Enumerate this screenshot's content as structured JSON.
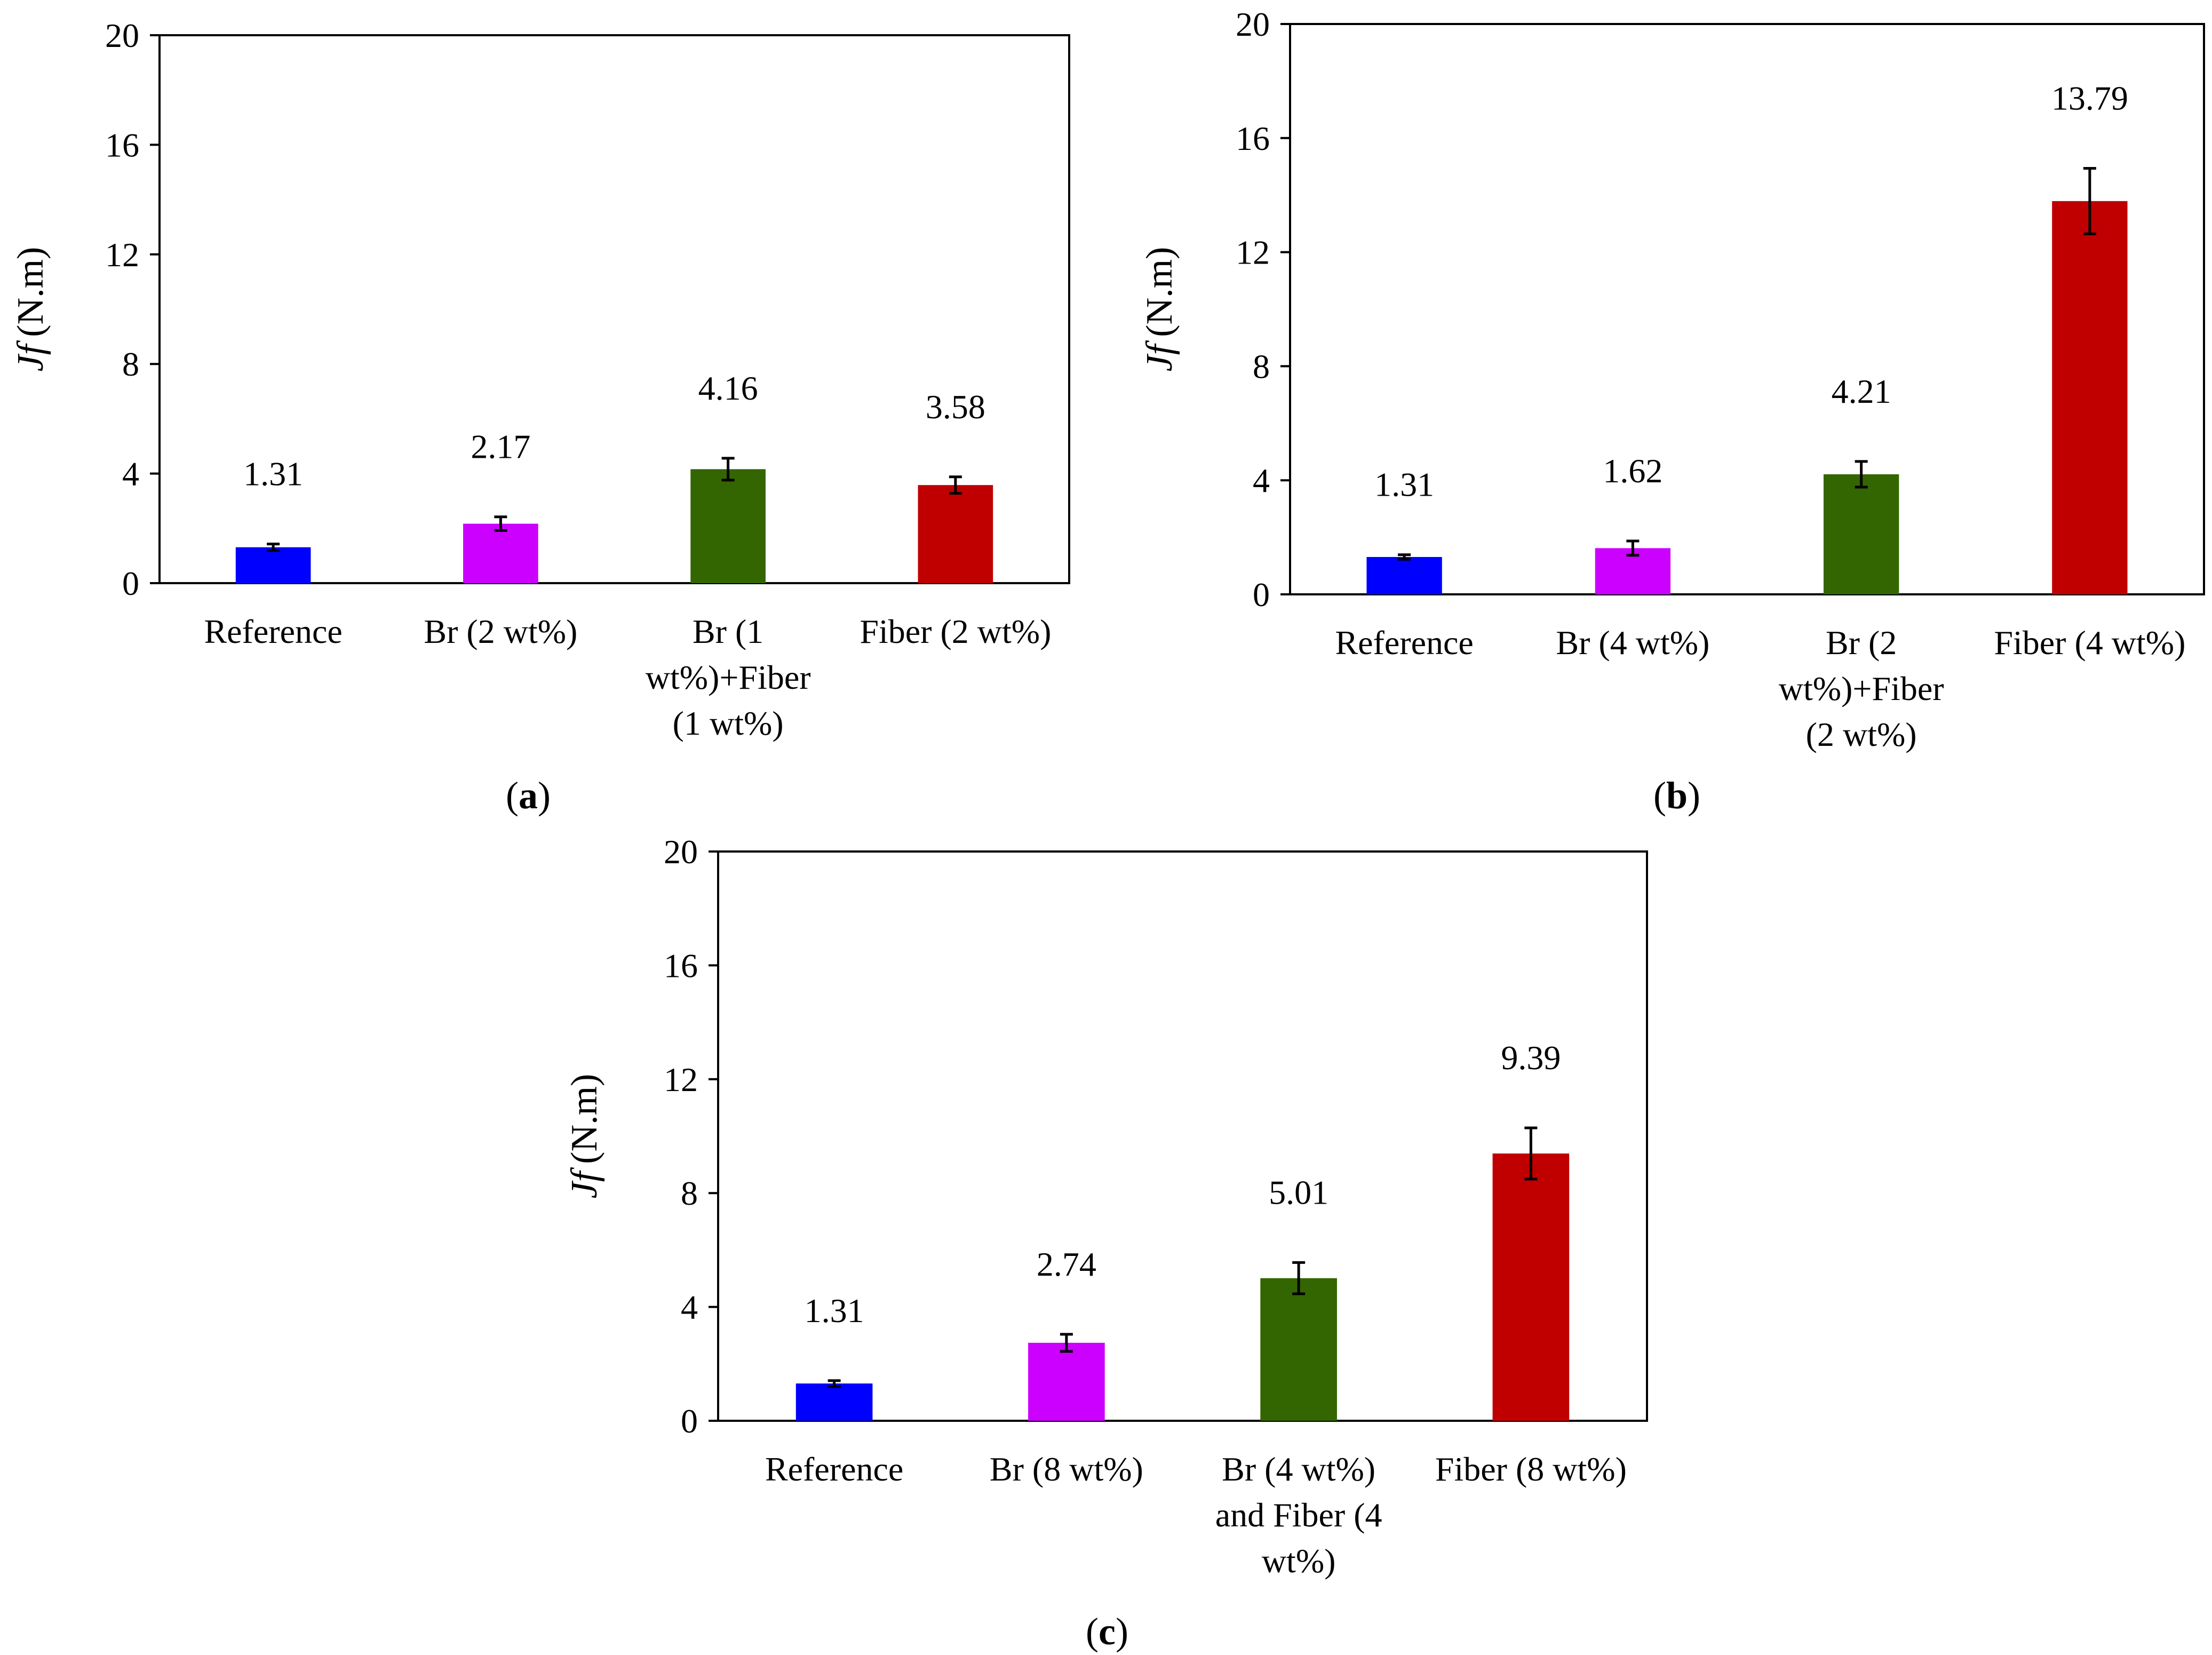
{
  "chart_data": [
    {
      "type": "bar",
      "panel_label": "a",
      "ylabel_symbol": "Jf",
      "ylabel_unit": "(N.m)",
      "ylim": [
        0,
        20
      ],
      "yticks": [
        "0",
        "4",
        "8",
        "12",
        "16",
        "20"
      ],
      "categories": [
        [
          "Reference"
        ],
        [
          "Br (2 wt%)"
        ],
        [
          "Br (1",
          "wt%)+Fiber",
          "(1 wt%)"
        ],
        [
          "Fiber (2 wt%)"
        ]
      ],
      "values": [
        1.31,
        2.17,
        4.16,
        3.58
      ],
      "value_labels": [
        "1.31",
        "2.17",
        "4.16",
        "3.58"
      ],
      "errors": [
        0.12,
        0.25,
        0.4,
        0.3
      ],
      "colors": [
        "#0000ff",
        "#cc00ff",
        "#336600",
        "#c00000"
      ]
    },
    {
      "type": "bar",
      "panel_label": "b",
      "ylabel_symbol": "Jf",
      "ylabel_unit": "(N.m)",
      "ylim": [
        0,
        20
      ],
      "yticks": [
        "0",
        "4",
        "8",
        "12",
        "16",
        "20"
      ],
      "categories": [
        [
          "Reference"
        ],
        [
          "Br (4 wt%)"
        ],
        [
          "Br (2",
          "wt%)+Fiber",
          "(2 wt%)"
        ],
        [
          "Fiber (4 wt%)"
        ]
      ],
      "values": [
        1.31,
        1.62,
        4.21,
        13.79
      ],
      "value_labels": [
        "1.31",
        "1.62",
        "4.21",
        "13.79"
      ],
      "errors": [
        0.08,
        0.25,
        0.45,
        1.15
      ],
      "colors": [
        "#0000ff",
        "#cc00ff",
        "#336600",
        "#c00000"
      ]
    },
    {
      "type": "bar",
      "panel_label": "c",
      "ylabel_symbol": "Jf",
      "ylabel_unit": "(N.m)",
      "ylim": [
        0,
        20
      ],
      "yticks": [
        "0",
        "4",
        "8",
        "12",
        "16",
        "20"
      ],
      "categories": [
        [
          "Reference"
        ],
        [
          "Br (8 wt%)"
        ],
        [
          "Br (4 wt%)",
          "and Fiber (4",
          "wt%)"
        ],
        [
          "Fiber (8 wt%)"
        ]
      ],
      "values": [
        1.31,
        2.74,
        5.01,
        9.39
      ],
      "value_labels": [
        "1.31",
        "2.74",
        "5.01",
        "9.39"
      ],
      "errors": [
        0.1,
        0.3,
        0.55,
        0.9
      ],
      "colors": [
        "#0000ff",
        "#cc00ff",
        "#336600",
        "#c00000"
      ]
    }
  ]
}
